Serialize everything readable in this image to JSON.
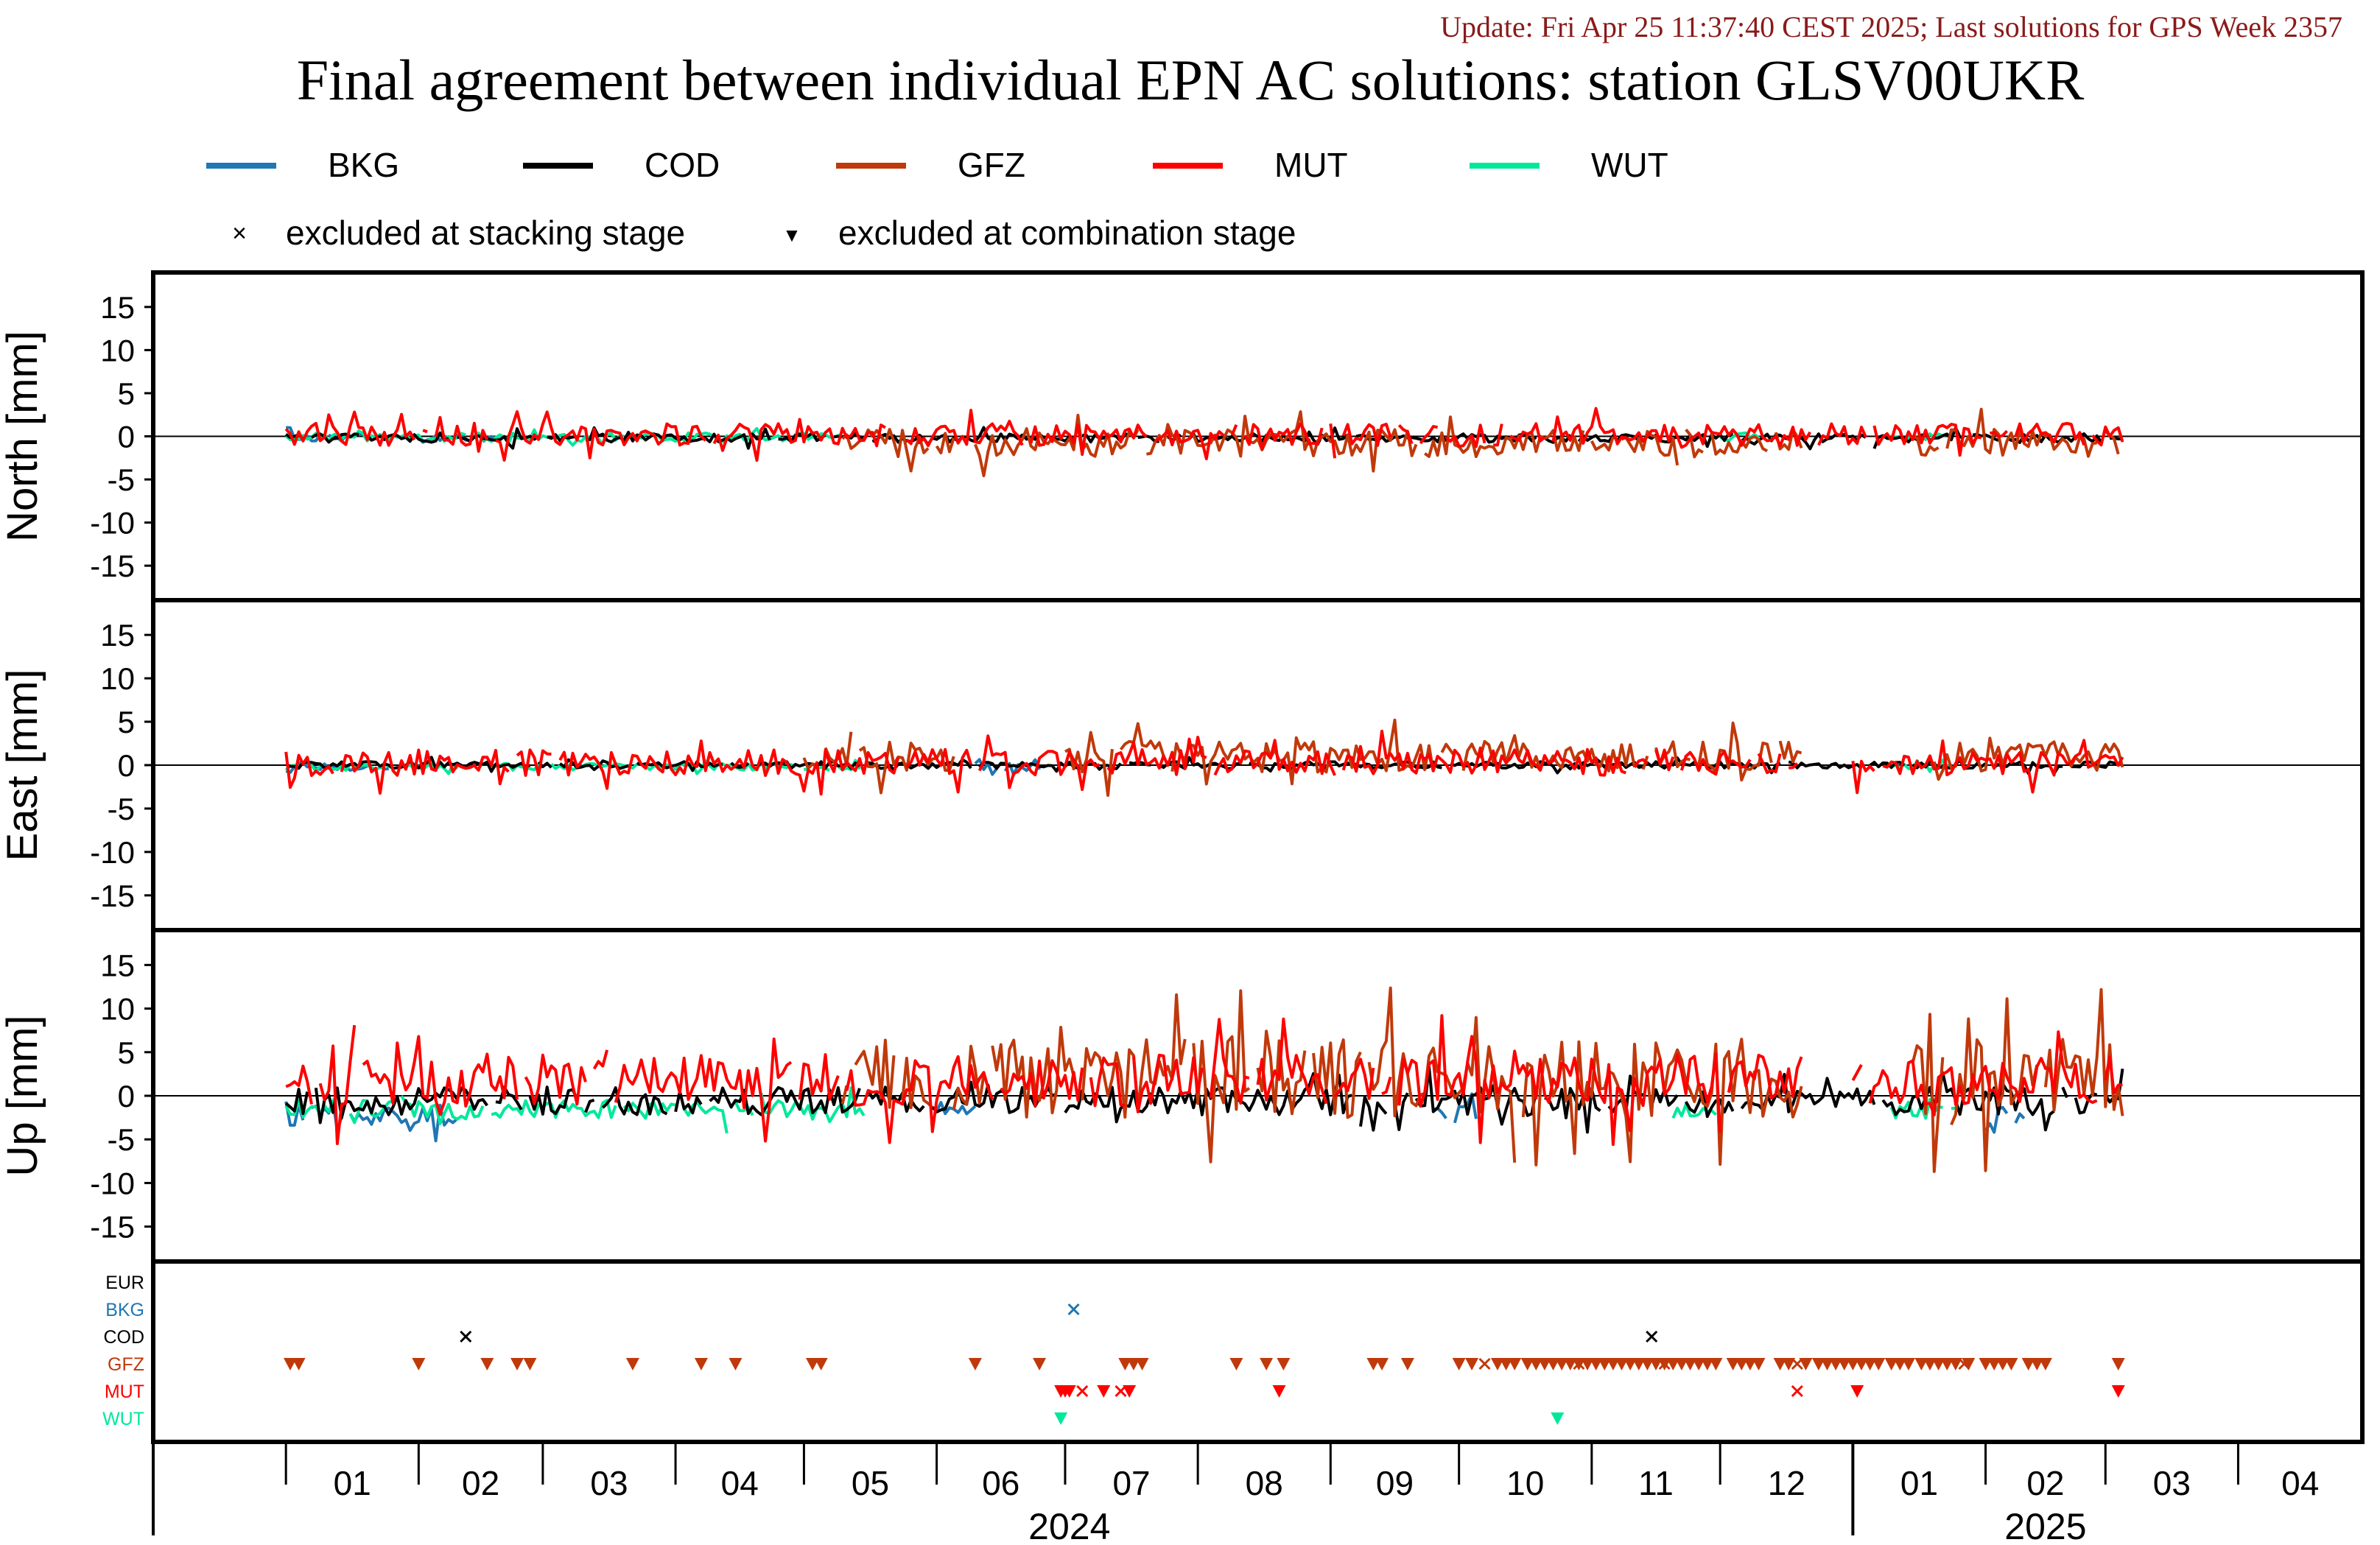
{
  "header": {
    "update_text": "Update: Fri Apr 25 11:37:40 CEST 2025; Last solutions for GPS Week 2357",
    "title": "Final agreement between individual EPN AC solutions: station GLSV00UKR"
  },
  "legend": {
    "series": [
      {
        "name": "BKG",
        "color": "#1f77b4"
      },
      {
        "name": "COD",
        "color": "#000000"
      },
      {
        "name": "GFZ",
        "color": "#c0390b"
      },
      {
        "name": "MUT",
        "color": "#ff0000"
      },
      {
        "name": "WUT",
        "color": "#00e89a"
      }
    ],
    "markers": [
      {
        "symbol": "×",
        "label": "excluded at stacking stage"
      },
      {
        "symbol": "▼",
        "label": "excluded at combination stage"
      }
    ]
  },
  "colors": {
    "BKG": "#1f77b4",
    "COD": "#000000",
    "GFZ": "#c0390b",
    "MUT": "#ff0000",
    "WUT": "#00e89a",
    "EUR": "#000000",
    "update_text": "#8b1a1a"
  },
  "chart_data": {
    "type": "line",
    "x_range": [
      "2023-12-01",
      "2025-04-30"
    ],
    "x_tick_labels": [
      "01",
      "02",
      "03",
      "04",
      "05",
      "06",
      "07",
      "08",
      "09",
      "10",
      "11",
      "12",
      "01",
      "02",
      "03",
      "04"
    ],
    "year_labels": [
      "2024",
      "2025"
    ],
    "panels": [
      {
        "ylabel": "North [mm]",
        "ylim": [
          -19,
          19
        ],
        "yticks": [
          -15,
          -10,
          -5,
          0,
          5,
          10,
          15
        ],
        "series": [
          {
            "name": "BKG",
            "segments": [
              [
                "2024-01-01",
                "2024-01-20"
              ],
              [
                "2024-02-01",
                "2024-02-20"
              ]
            ],
            "amp": 0.5,
            "bias": -0.2
          },
          {
            "name": "COD",
            "segments": [
              [
                "2024-01-01",
                "2025-03-05"
              ]
            ],
            "amp": 0.5,
            "bias": -0.2
          },
          {
            "name": "GFZ",
            "segments": [
              [
                "2024-05-10",
                "2024-06-05"
              ],
              [
                "2024-06-10",
                "2024-12-20"
              ],
              [
                "2025-01-15",
                "2025-03-05"
              ]
            ],
            "amp": 1.6,
            "bias": -0.8
          },
          {
            "name": "MUT",
            "segments": [
              [
                "2024-01-01",
                "2024-05-20"
              ],
              [
                "2024-05-25",
                "2025-03-05"
              ]
            ],
            "amp": 1.3,
            "bias": 0.2
          },
          {
            "name": "WUT",
            "segments": [
              [
                "2024-01-01",
                "2024-05-10"
              ],
              [
                "2024-12-01",
                "2024-12-10"
              ],
              [
                "2025-01-10",
                "2025-01-25"
              ]
            ],
            "amp": 0.5,
            "bias": -0.1
          }
        ]
      },
      {
        "ylabel": "East [mm]",
        "ylim": [
          -19,
          19
        ],
        "yticks": [
          -15,
          -10,
          -5,
          0,
          5,
          10,
          15
        ],
        "series": [
          {
            "name": "BKG",
            "segments": [
              [
                "2024-01-01",
                "2024-01-25"
              ],
              [
                "2024-06-10",
                "2024-06-25"
              ]
            ],
            "amp": 0.5,
            "bias": -0.2
          },
          {
            "name": "COD",
            "segments": [
              [
                "2024-01-01",
                "2025-03-05"
              ]
            ],
            "amp": 0.4,
            "bias": 0.0
          },
          {
            "name": "GFZ",
            "segments": [
              [
                "2024-05-01",
                "2024-06-05"
              ],
              [
                "2024-07-01",
                "2024-12-20"
              ],
              [
                "2025-01-20",
                "2025-03-05"
              ]
            ],
            "amp": 1.8,
            "bias": 1.0
          },
          {
            "name": "MUT",
            "segments": [
              [
                "2024-01-01",
                "2024-12-20"
              ],
              [
                "2025-01-01",
                "2025-03-05"
              ]
            ],
            "amp": 1.5,
            "bias": 0.3
          },
          {
            "name": "WUT",
            "segments": [
              [
                "2024-01-01",
                "2024-05-15"
              ],
              [
                "2025-01-10",
                "2025-01-25"
              ]
            ],
            "amp": 0.4,
            "bias": -0.2
          }
        ]
      },
      {
        "ylabel": "Up [mm]",
        "ylim": [
          -19,
          19
        ],
        "yticks": [
          -15,
          -10,
          -5,
          0,
          5,
          10,
          15
        ],
        "series": [
          {
            "name": "BKG",
            "segments": [
              [
                "2024-01-01",
                "2024-02-10"
              ],
              [
                "2024-06-01",
                "2024-06-10"
              ],
              [
                "2024-09-25",
                "2024-10-05"
              ],
              [
                "2025-02-01",
                "2025-02-10"
              ]
            ],
            "amp": 1.4,
            "bias": -2.0
          },
          {
            "name": "COD",
            "segments": [
              [
                "2024-01-01",
                "2025-03-05"
              ]
            ],
            "amp": 1.6,
            "bias": -0.6
          },
          {
            "name": "GFZ",
            "segments": [
              [
                "2024-05-10",
                "2024-06-01"
              ],
              [
                "2024-06-05",
                "2024-12-20"
              ],
              [
                "2025-01-15",
                "2025-03-05"
              ]
            ],
            "amp": 4.5,
            "bias": 2.0
          },
          {
            "name": "MUT",
            "segments": [
              [
                "2024-01-01",
                "2024-12-20"
              ],
              [
                "2025-01-01",
                "2025-03-05"
              ]
            ],
            "amp": 3.0,
            "bias": 1.8
          },
          {
            "name": "WUT",
            "segments": [
              [
                "2024-01-01",
                "2024-05-15"
              ],
              [
                "2024-11-20",
                "2024-11-30"
              ],
              [
                "2025-01-10",
                "2025-01-25"
              ]
            ],
            "amp": 1.1,
            "bias": -1.6
          }
        ]
      }
    ],
    "exclusion_rows": [
      "EUR",
      "BKG",
      "COD",
      "GFZ",
      "MUT",
      "WUT"
    ],
    "exclusions": [
      {
        "ac": "BKG",
        "type": "stacking",
        "dates": [
          "2024-07-03"
        ]
      },
      {
        "ac": "COD",
        "type": "stacking",
        "dates": [
          "2024-02-12",
          "2024-11-15"
        ]
      },
      {
        "ac": "GFZ",
        "type": "combination",
        "dates": [
          "2024-01-02",
          "2024-01-04",
          "2024-02-01",
          "2024-02-17",
          "2024-02-24",
          "2024-02-27",
          "2024-03-22",
          "2024-04-07",
          "2024-04-15",
          "2024-05-03",
          "2024-05-05",
          "2024-06-10",
          "2024-06-25",
          "2024-07-15",
          "2024-07-17",
          "2024-07-19",
          "2024-08-10",
          "2024-08-17",
          "2024-08-21",
          "2024-09-11",
          "2024-09-13",
          "2024-09-19",
          "2024-10-01",
          "2024-10-04",
          "2024-10-10",
          "2024-10-12",
          "2024-10-14",
          "2024-10-17",
          "2024-10-19",
          "2024-10-21",
          "2024-10-23",
          "2024-10-25",
          "2024-10-27",
          "2024-10-29",
          "2024-10-31",
          "2024-11-02",
          "2024-11-04",
          "2024-11-06",
          "2024-11-08",
          "2024-11-10",
          "2024-11-12",
          "2024-11-14",
          "2024-11-16",
          "2024-11-18",
          "2024-11-20",
          "2024-11-22",
          "2024-11-24",
          "2024-11-26",
          "2024-11-28",
          "2024-11-30",
          "2024-12-04",
          "2024-12-06",
          "2024-12-08",
          "2024-12-10",
          "2024-12-15",
          "2024-12-17",
          "2024-12-21",
          "2024-12-24",
          "2024-12-26",
          "2024-12-28",
          "2024-12-30",
          "2025-01-01",
          "2025-01-03",
          "2025-01-05",
          "2025-01-07",
          "2025-01-10",
          "2025-01-12",
          "2025-01-14",
          "2025-01-17",
          "2025-01-19",
          "2025-01-21",
          "2025-01-23",
          "2025-01-25",
          "2025-01-28",
          "2025-02-01",
          "2025-02-03",
          "2025-02-05",
          "2025-02-07",
          "2025-02-11",
          "2025-02-13",
          "2025-02-15",
          "2025-03-04"
        ]
      },
      {
        "ac": "GFZ",
        "type": "stacking",
        "dates": [
          "2024-10-07",
          "2024-10-29",
          "2024-11-18",
          "2024-12-19",
          "2025-01-27"
        ]
      },
      {
        "ac": "MUT",
        "type": "combination",
        "dates": [
          "2024-06-30",
          "2024-07-01",
          "2024-07-02",
          "2024-07-10",
          "2024-07-16",
          "2024-08-20",
          "2025-01-02",
          "2025-03-04"
        ]
      },
      {
        "ac": "MUT",
        "type": "stacking",
        "dates": [
          "2024-07-05",
          "2024-07-14",
          "2024-12-19"
        ]
      },
      {
        "ac": "WUT",
        "type": "combination",
        "dates": [
          "2024-06-30",
          "2024-10-24"
        ]
      }
    ]
  }
}
